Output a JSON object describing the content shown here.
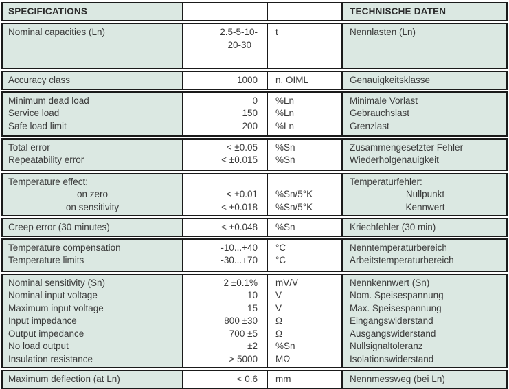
{
  "table": {
    "colors": {
      "cell_bg": "#dbe8e2",
      "border": "#1a1a1a",
      "text": "#3a3a3a"
    },
    "header": {
      "en": "SPECIFICATIONS",
      "de": "TECHNISCHE DATEN"
    },
    "sections": [
      {
        "en": [
          "Nominal capacities (Ln)"
        ],
        "val": [
          "2.5-5-10-",
          "20-30"
        ],
        "unit": [
          "t"
        ],
        "de": [
          "Nennlasten (Ln)"
        ]
      },
      {
        "en": [
          "Accuracy class"
        ],
        "val": [
          "1000"
        ],
        "unit": [
          "n. OIML"
        ],
        "de": [
          "Genauigkeitsklasse"
        ]
      },
      {
        "en": [
          "Minimum dead load",
          "Service load",
          "Safe load limit"
        ],
        "val": [
          "0",
          "150",
          "200"
        ],
        "unit": [
          "%Ln",
          "%Ln",
          "%Ln"
        ],
        "de": [
          "Minimale Vorlast",
          "Gebrauchslast",
          "Grenzlast"
        ]
      },
      {
        "en": [
          "Total error",
          "Repeatability error"
        ],
        "val": [
          "< ±0.05",
          "< ±0.015"
        ],
        "unit": [
          "%Sn",
          "%Sn"
        ],
        "de": [
          "Zusammengesetzter Fehler",
          "Wiederholgenauigkeit"
        ]
      },
      {
        "en": [
          "Temperature effect:",
          "on zero",
          "on sensitivity"
        ],
        "val": [
          "",
          "< ±0.01",
          "< ±0.018"
        ],
        "unit": [
          "",
          "%Sn/5°K",
          "%Sn/5°K"
        ],
        "de": [
          "Temperaturfehler:",
          "Nullpunkt",
          "Kennwert"
        ]
      },
      {
        "en": [
          "Creep error (30 minutes)"
        ],
        "val": [
          "< ±0.048"
        ],
        "unit": [
          "%Sn"
        ],
        "de": [
          "Kriechfehler (30 min)"
        ]
      },
      {
        "en": [
          "Temperature compensation",
          "Temperature limits"
        ],
        "val": [
          "-10...+40",
          "-30...+70"
        ],
        "unit": [
          "°C",
          "°C"
        ],
        "de": [
          "Nenntemperaturbereich",
          "Arbeitstemperaturbereich"
        ]
      },
      {
        "en": [
          "Nominal sensitivity (Sn)",
          "Nominal input voltage",
          "Maximum input voltage",
          "Input impedance",
          "Output impedance",
          "No load output",
          "Insulation resistance"
        ],
        "val": [
          "2 ±0.1%",
          "10",
          "15",
          "800 ±30",
          "700 ±5",
          "±2",
          "> 5000"
        ],
        "unit": [
          "mV/V",
          "V",
          "V",
          "Ω",
          "Ω",
          "%Sn",
          "MΩ"
        ],
        "de": [
          "Nennkennwert (Sn)",
          "Nom. Speisespannung",
          "Max. Speisespannung",
          "Eingangswiderstand",
          "Ausgangswiderstand",
          "Nullsignaltoleranz",
          "Isolationswiderstand"
        ]
      },
      {
        "en": [
          "Maximum deflection (at Ln)"
        ],
        "val": [
          "< 0.6"
        ],
        "unit": [
          "mm"
        ],
        "de": [
          "Nennmessweg (bei Ln)"
        ]
      }
    ]
  }
}
